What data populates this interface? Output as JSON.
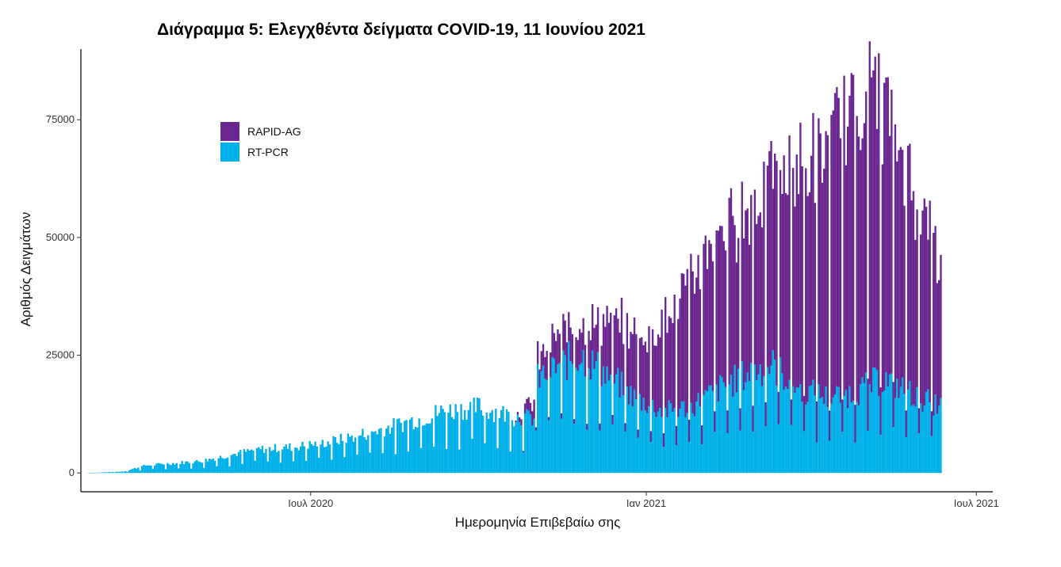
{
  "chart_data": {
    "type": "bar",
    "stacked": true,
    "title": "Διάγραμμα 5: Ελεγχθέντα δείγματα COVID-19, 11 Ιουνίου 2021",
    "xlabel": "Ημερομηνία Επιβεβαίω σης",
    "ylabel": "Αριθμός Δειγμάτων",
    "ylim": [
      -4000,
      90000
    ],
    "yticks": [
      0,
      25000,
      50000,
      75000
    ],
    "ytick_labels": [
      "0",
      "25000",
      "50000",
      "75000"
    ],
    "x_range": [
      "2020-02-26",
      "2021-07-10"
    ],
    "first_date": "2020-03-01",
    "xticks": [
      {
        "date": "2020-07-01",
        "label": "Ιουλ 2020"
      },
      {
        "date": "2021-01-01",
        "label": "Ιαν 2021"
      },
      {
        "date": "2021-07-01",
        "label": "Ιουλ 2021"
      }
    ],
    "legend_position": "top-left",
    "grid": false,
    "series": [
      {
        "name": "RAPID-AG",
        "color": "#6a268f",
        "weekly_shape": "6 high days, 1 low day; peaks ~8000 in Nov 2020 rising to ~85000 in Apr 2021",
        "approx_range": [
          0,
          72000
        ]
      },
      {
        "name": "RT-PCR",
        "color": "#00b0e8",
        "approx_range": [
          0,
          27000
        ],
        "note": "Daily values rise from ~0 in Mar 2020 to ~25000 in Nov 2020 and ~15000 in Jun 2021"
      }
    ],
    "anchors": {
      "rtpcr": [
        [
          "2020-03-01",
          0
        ],
        [
          "2020-03-20",
          300
        ],
        [
          "2020-04-01",
          1600
        ],
        [
          "2020-05-01",
          2500
        ],
        [
          "2020-06-01",
          5000
        ],
        [
          "2020-06-20",
          5500
        ],
        [
          "2020-07-10",
          6500
        ],
        [
          "2020-08-01",
          8500
        ],
        [
          "2020-08-20",
          10500
        ],
        [
          "2020-09-10",
          13000
        ],
        [
          "2020-10-01",
          14000
        ],
        [
          "2020-10-20",
          12000
        ],
        [
          "2020-10-31",
          11500
        ],
        [
          "2020-11-01",
          19500
        ],
        [
          "2020-11-10",
          22000
        ],
        [
          "2020-11-25",
          25000
        ],
        [
          "2020-12-10",
          21000
        ],
        [
          "2020-12-25",
          16000
        ],
        [
          "2021-01-10",
          13000
        ],
        [
          "2021-01-25",
          14000
        ],
        [
          "2021-02-10",
          18000
        ],
        [
          "2021-02-25",
          21000
        ],
        [
          "2021-03-10",
          23000
        ],
        [
          "2021-03-25",
          18000
        ],
        [
          "2021-04-10",
          16000
        ],
        [
          "2021-04-25",
          17000
        ],
        [
          "2021-05-10",
          20000
        ],
        [
          "2021-05-25",
          17000
        ],
        [
          "2021-06-11",
          14000
        ]
      ],
      "rapid": [
        [
          "2020-03-01",
          0
        ],
        [
          "2020-10-20",
          0
        ],
        [
          "2020-11-01",
          4000
        ],
        [
          "2020-11-15",
          7000
        ],
        [
          "2020-12-01",
          8000
        ],
        [
          "2020-12-15",
          13000
        ],
        [
          "2021-01-01",
          14000
        ],
        [
          "2021-01-10",
          20000
        ],
        [
          "2021-01-25",
          27000
        ],
        [
          "2021-02-10",
          33000
        ],
        [
          "2021-02-25",
          35000
        ],
        [
          "2021-03-10",
          40000
        ],
        [
          "2021-03-25",
          47000
        ],
        [
          "2021-04-05",
          50000
        ],
        [
          "2021-04-15",
          55000
        ],
        [
          "2021-04-25",
          60000
        ],
        [
          "2021-05-05",
          65000
        ],
        [
          "2021-05-15",
          55000
        ],
        [
          "2021-05-25",
          45000
        ],
        [
          "2021-06-05",
          37000
        ],
        [
          "2021-06-11",
          28000
        ]
      ]
    }
  }
}
